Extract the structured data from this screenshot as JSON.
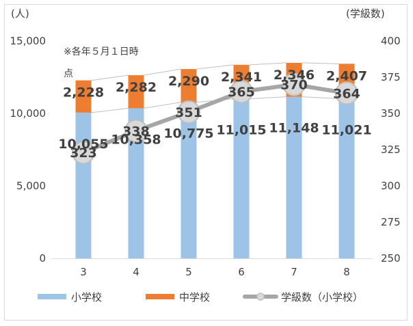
{
  "chart_data": {
    "type": "bar",
    "stacked": true,
    "left_axis_unit": "(人)",
    "right_axis_unit": "(学級数)",
    "note_line1": "※各年５月１日時",
    "note_line2": "点",
    "categories": [
      "3",
      "4",
      "5",
      "6",
      "7",
      "8"
    ],
    "ylim_left": [
      0,
      15000
    ],
    "yticks_left": [
      "0",
      "5,000",
      "10,000",
      "15,000"
    ],
    "ylim_right": [
      250,
      400
    ],
    "yticks_right": [
      "250",
      "275",
      "300",
      "325",
      "350",
      "375",
      "400"
    ],
    "series": [
      {
        "name": "小学校",
        "axis": "left",
        "kind": "bar",
        "color": "#9dc3e6",
        "values": [
          10055,
          10358,
          10775,
          11015,
          11148,
          11021
        ],
        "labels": [
          "10,055",
          "10,358",
          "10,775",
          "11,015",
          "11,148",
          "11,021"
        ]
      },
      {
        "name": "中学校",
        "axis": "left",
        "kind": "bar",
        "color": "#ed7d31",
        "values": [
          2228,
          2282,
          2290,
          2341,
          2346,
          2407
        ],
        "labels": [
          "2,228",
          "2,282",
          "2,290",
          "2,341",
          "2,346",
          "2,407"
        ]
      },
      {
        "name": "学級数（小学校）",
        "axis": "right",
        "kind": "line",
        "color": "#a6a6a6",
        "values": [
          323,
          338,
          351,
          365,
          370,
          364
        ],
        "labels": [
          "323",
          "338",
          "351",
          "365",
          "370",
          "364"
        ]
      }
    ],
    "legend": "bottom"
  }
}
